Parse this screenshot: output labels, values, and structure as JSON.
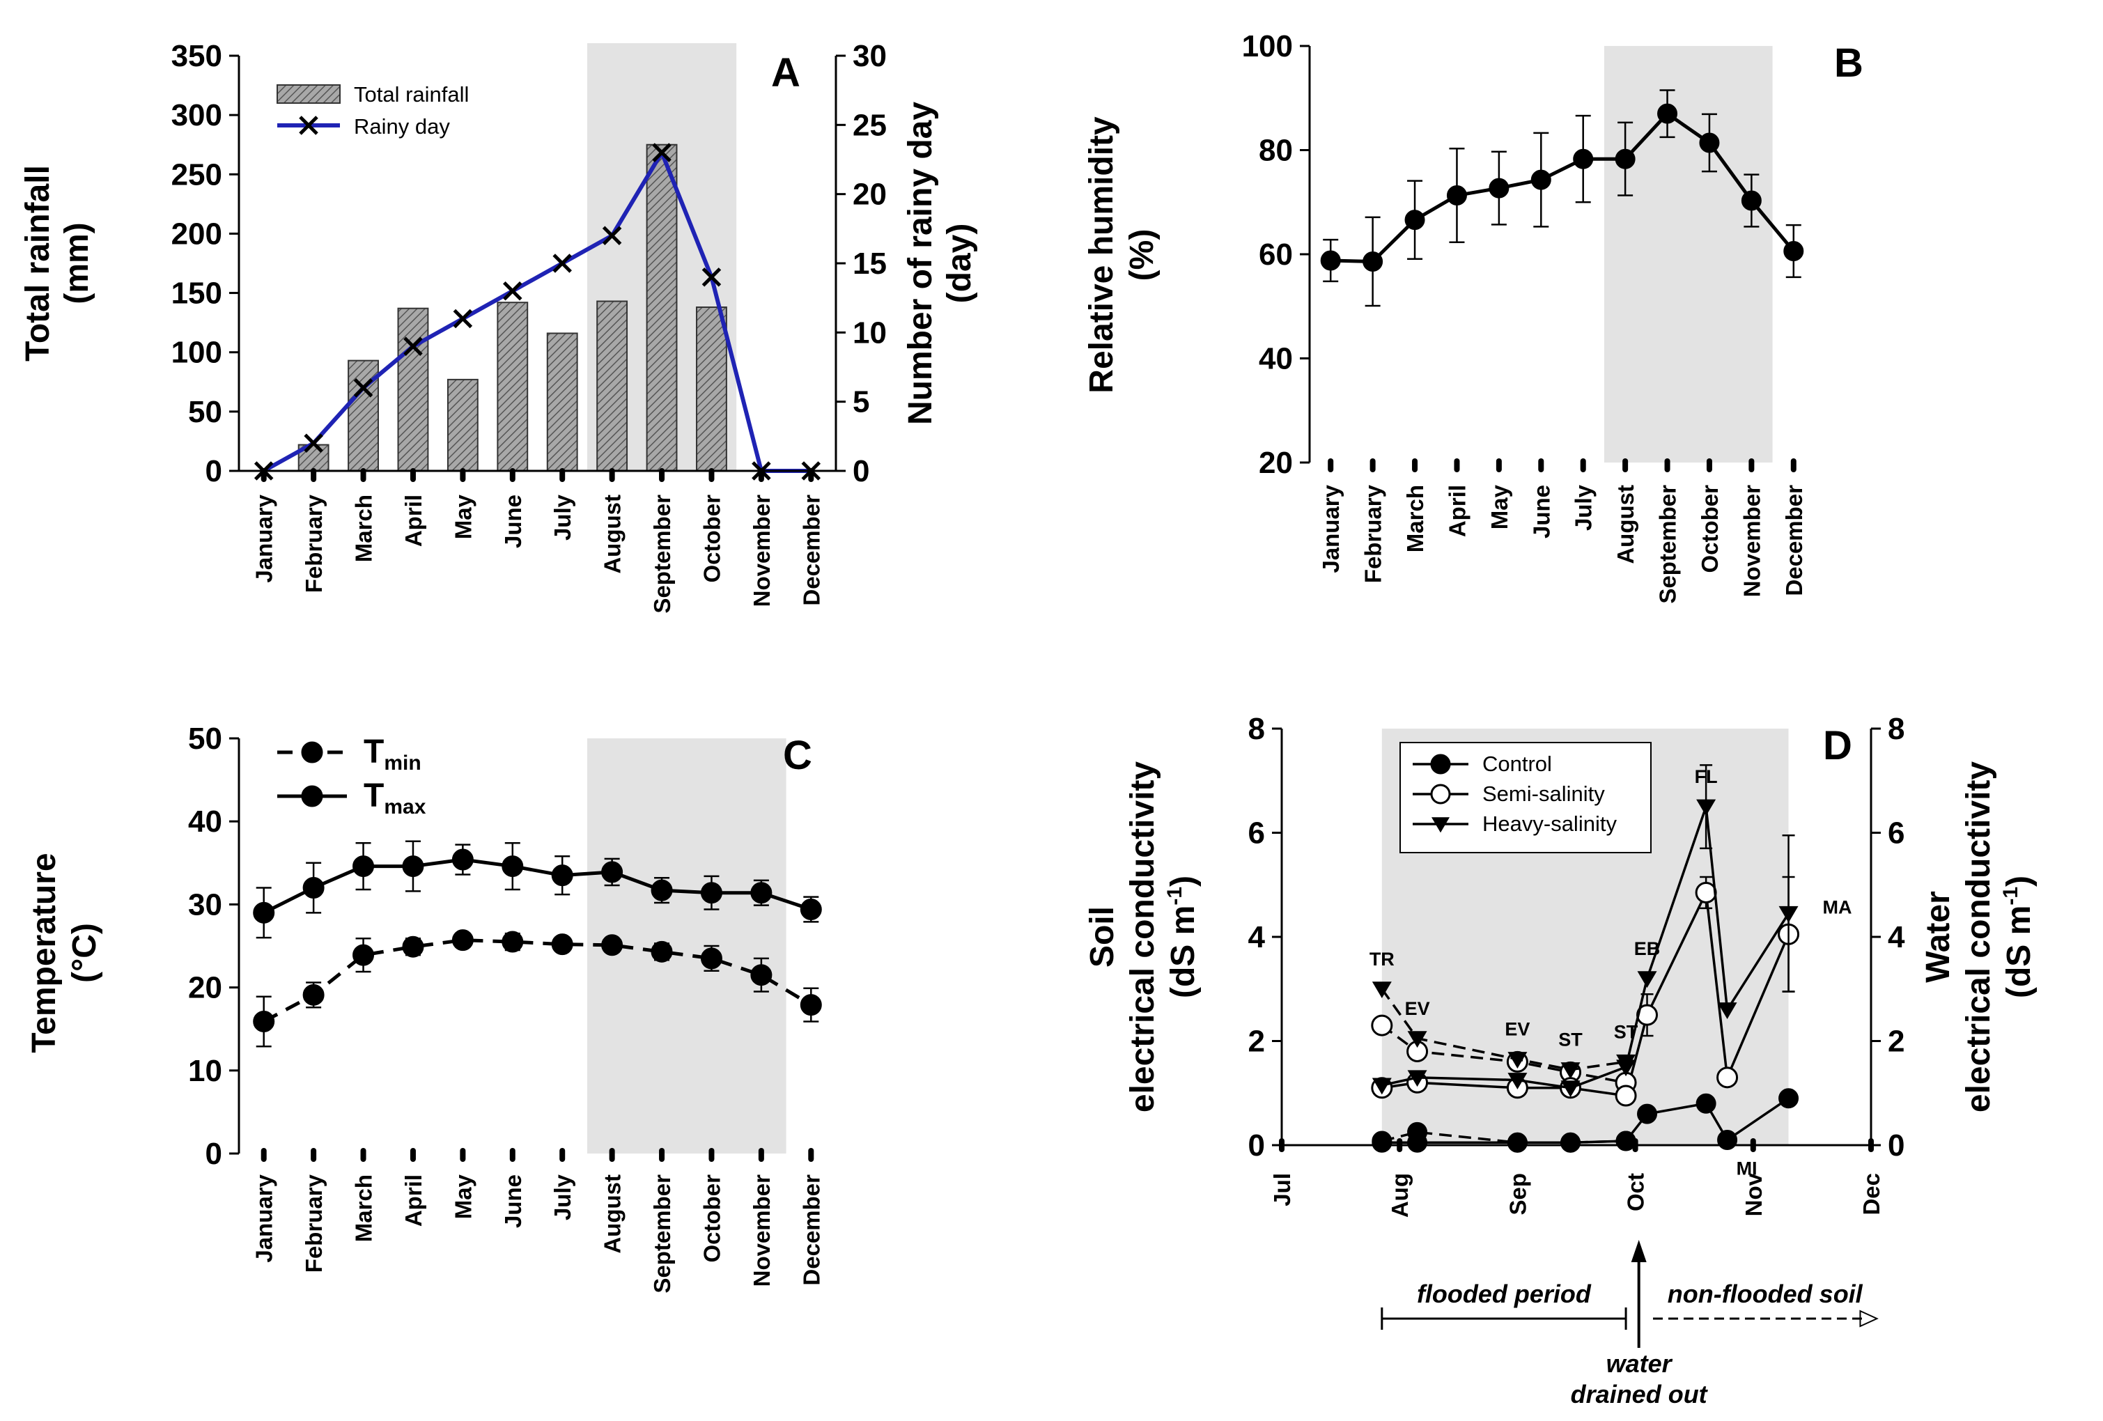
{
  "colors": {
    "shade": "#e3e3e3",
    "rainy_line": "#1f23b4",
    "bar_fill": "#8c8c8c",
    "ink": "#000000"
  },
  "chart_data": [
    {
      "panel": "A",
      "type": "bar+line",
      "categories": [
        "January",
        "February",
        "March",
        "April",
        "May",
        "June",
        "July",
        "August",
        "September",
        "October",
        "November",
        "December"
      ],
      "shaded_months": [
        "August",
        "October"
      ],
      "yleft": {
        "label_lines": [
          "Total rainfall",
          "(mm)"
        ],
        "lim": [
          0,
          350
        ],
        "ticks": [
          0,
          50,
          100,
          150,
          200,
          250,
          300,
          350
        ]
      },
      "yright": {
        "label_lines": [
          "Number of rainy day",
          "(day)"
        ],
        "lim": [
          0,
          30
        ],
        "ticks": [
          0,
          5,
          10,
          15,
          20,
          25,
          30
        ]
      },
      "series": [
        {
          "name": "Total rainfall",
          "type": "bar",
          "axis": "left",
          "values": [
            0,
            22,
            93,
            137,
            77,
            142,
            116,
            143,
            275,
            138,
            0,
            0
          ]
        },
        {
          "name": "Rainy day",
          "type": "line",
          "axis": "right",
          "marker": "x",
          "values": [
            0,
            2,
            6,
            9,
            11,
            13,
            15,
            17,
            23,
            14,
            0,
            0
          ]
        }
      ],
      "legend": {
        "items": [
          "Total rainfall",
          "Rainy day"
        ],
        "position": "top-left"
      }
    },
    {
      "panel": "B",
      "type": "line",
      "categories": [
        "January",
        "February",
        "March",
        "April",
        "May",
        "June",
        "July",
        "August",
        "September",
        "October",
        "November",
        "December"
      ],
      "shaded_months": [
        "August",
        "November"
      ],
      "y": {
        "label_lines": [
          "Relative humidity",
          "(%)"
        ],
        "lim": [
          20,
          100
        ],
        "ticks": [
          20,
          40,
          60,
          80,
          100
        ]
      },
      "series": [
        {
          "name": "Relative humidity",
          "values": [
            58.8,
            58.6,
            66.6,
            71.3,
            72.7,
            74.3,
            78.3,
            78.3,
            87.0,
            81.4,
            70.3,
            60.6
          ],
          "errors": [
            4.0,
            8.5,
            7.5,
            9.0,
            7.0,
            9.0,
            8.3,
            7.0,
            4.5,
            5.5,
            5.0,
            5.0
          ]
        }
      ]
    },
    {
      "panel": "C",
      "type": "line",
      "categories": [
        "January",
        "February",
        "March",
        "April",
        "May",
        "June",
        "July",
        "August",
        "September",
        "October",
        "November",
        "December"
      ],
      "shaded_months": [
        "August",
        "November"
      ],
      "y": {
        "label_lines": [
          "Temperature",
          "(°C)"
        ],
        "lim": [
          0,
          50
        ],
        "ticks": [
          0,
          10,
          20,
          30,
          40,
          50
        ]
      },
      "legend": {
        "items": [
          {
            "main": "T",
            "sub": "min",
            "style": "dashed"
          },
          {
            "main": "T",
            "sub": "max",
            "style": "solid"
          }
        ],
        "position": "top-left"
      },
      "series": [
        {
          "name": "Tmin",
          "dash": true,
          "values": [
            15.9,
            19.1,
            23.9,
            24.9,
            25.7,
            25.5,
            25.2,
            25.1,
            24.3,
            23.5,
            21.5,
            17.9
          ],
          "errors": [
            3.0,
            1.5,
            2.0,
            1.0,
            0.8,
            1.0,
            0.8,
            0.8,
            1.0,
            1.5,
            2.0,
            2.0
          ]
        },
        {
          "name": "Tmax",
          "dash": false,
          "values": [
            29.0,
            32.0,
            34.6,
            34.6,
            35.4,
            34.6,
            33.5,
            33.9,
            31.7,
            31.4,
            31.4,
            29.4
          ],
          "errors": [
            3.0,
            3.0,
            2.8,
            3.0,
            1.8,
            2.8,
            2.3,
            1.6,
            1.5,
            2.0,
            1.5,
            1.5
          ]
        }
      ]
    },
    {
      "panel": "D",
      "type": "line",
      "x": {
        "ticks": [
          "Jul",
          "Aug",
          "Sep",
          "Oct",
          "Nov",
          "Dec"
        ],
        "lim": [
          0,
          5
        ]
      },
      "shaded_range": [
        0.85,
        4.3
      ],
      "yleft": {
        "label_lines": [
          "Soil",
          "electrical conductivity",
          "(dS m-1)"
        ],
        "lim": [
          0,
          8
        ],
        "ticks": [
          0,
          2,
          4,
          6,
          8
        ]
      },
      "yright": {
        "label_lines": [
          "Water",
          "electrical conductivity",
          "(dS m-1)"
        ],
        "lim": [
          0,
          8
        ],
        "ticks": [
          0,
          2,
          4,
          6,
          8
        ]
      },
      "legend": {
        "items": [
          "Control",
          "Semi-salinity",
          "Heavy-salinity"
        ],
        "position": "top-left"
      },
      "series": [
        {
          "name": "Control",
          "marker": "circle-filled",
          "water": {
            "x": [
              0.85,
              1.15,
              2.0,
              2.45,
              2.92
            ],
            "y": [
              0.08,
              0.25,
              0.05,
              0.05,
              0.08
            ]
          },
          "soil": {
            "x": [
              0.85,
              1.15,
              2.0,
              2.45,
              2.92,
              3.1,
              3.6,
              3.78,
              4.3
            ],
            "y": [
              0.05,
              0.05,
              0.05,
              0.05,
              0.08,
              0.6,
              0.8,
              0.1,
              0.9
            ]
          }
        },
        {
          "name": "Semi-salinity",
          "marker": "circle-open",
          "water": {
            "x": [
              0.85,
              1.15,
              2.0,
              2.45,
              2.92
            ],
            "y": [
              2.3,
              1.8,
              1.6,
              1.4,
              1.2
            ]
          },
          "soil": {
            "x": [
              0.85,
              1.15,
              2.0,
              2.45,
              2.92,
              3.1,
              3.6,
              3.78,
              4.3
            ],
            "y": [
              1.1,
              1.2,
              1.1,
              1.1,
              0.95,
              2.5,
              4.85,
              1.3,
              4.05
            ]
          },
          "soil_errors": {
            "x": [
              3.1,
              3.6,
              4.3
            ],
            "e": [
              0.4,
              0.3,
              1.1
            ]
          }
        },
        {
          "name": "Heavy-salinity",
          "marker": "triangle-down",
          "water": {
            "x": [
              0.85,
              1.15,
              2.0,
              2.45,
              2.92
            ],
            "y": [
              3.0,
              2.05,
              1.65,
              1.45,
              1.6
            ]
          },
          "soil": {
            "x": [
              0.85,
              1.15,
              2.0,
              2.45,
              2.92,
              3.1,
              3.6,
              3.78,
              4.3
            ],
            "y": [
              1.15,
              1.3,
              1.25,
              1.1,
              1.5,
              3.2,
              6.5,
              2.6,
              4.45
            ]
          },
          "soil_errors": {
            "x": [
              3.6,
              4.3
            ],
            "e": [
              0.8,
              1.5
            ]
          }
        }
      ],
      "stages": [
        {
          "label": "TR",
          "x": 0.85,
          "y": 3.0
        },
        {
          "label": "EV",
          "x": 1.15,
          "y": 2.05
        },
        {
          "label": "EV",
          "x": 2.0,
          "y": 1.65
        },
        {
          "label": "ST",
          "x": 2.45,
          "y": 1.45
        },
        {
          "label": "ST",
          "x": 2.92,
          "y": 1.6
        },
        {
          "label": "EB",
          "x": 3.1,
          "y": 3.2
        },
        {
          "label": "FL",
          "x": 3.6,
          "y": 6.5
        },
        {
          "label": "MI",
          "x": 3.78,
          "y": 0.1
        },
        {
          "label": "MA",
          "x": 4.3,
          "y": 4.45
        }
      ],
      "period_notes": {
        "flooded": "flooded period",
        "non_flooded": "non-flooded soil",
        "drain_line1": "water",
        "drain_line2": "drained out"
      }
    }
  ]
}
